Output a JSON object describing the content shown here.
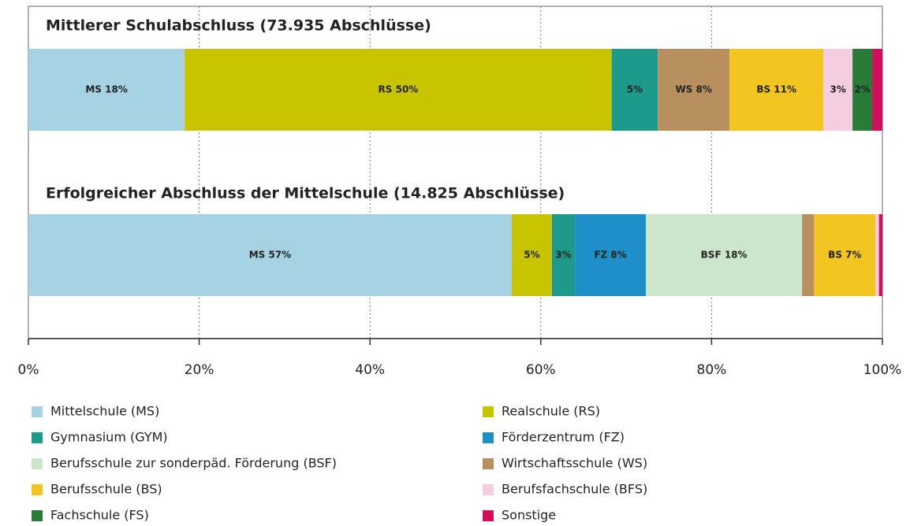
{
  "chart_data": {
    "type": "bar",
    "orientation": "horizontal",
    "stacked": true,
    "categories": [
      "Mittlerer Schulabschluss  (73.935 Abschlüsse)",
      "Erfolgreicher Abschluss der Mittelschule (14.825 Abschlüsse)"
    ],
    "xlim": [
      0,
      100
    ],
    "xticks": [
      {
        "value": 0,
        "label": "0%"
      },
      {
        "value": 20,
        "label": "20%"
      },
      {
        "value": 40,
        "label": "40%"
      },
      {
        "value": 60,
        "label": "60%"
      },
      {
        "value": 80,
        "label": "80%"
      },
      {
        "value": 100,
        "label": "100%"
      }
    ],
    "grid": true,
    "series": [
      {
        "name": "Mittelschule (MS)",
        "color": "#a6d3e3",
        "values": [
          18.3,
          56.6
        ],
        "value_labels": [
          "MS 18%",
          "MS 57%"
        ]
      },
      {
        "name": "Realschule (RS)",
        "color": "#c8c400",
        "values": [
          50.0,
          4.7
        ],
        "value_labels": [
          "RS 50%",
          "5%"
        ]
      },
      {
        "name": "Gymnasium (GYM)",
        "color": "#1e9a8a",
        "values": [
          5.4,
          2.7
        ],
        "value_labels": [
          "5%",
          "3%"
        ]
      },
      {
        "name": "Förderzentrum (FZ)",
        "color": "#1e8fc8",
        "values": [
          null,
          8.3
        ],
        "value_labels": [
          null,
          "FZ 8%"
        ]
      },
      {
        "name": "Berufsschule zur sonderpäd. Förderung (BSF)",
        "color": "#cce6cc",
        "values": [
          null,
          18.3
        ],
        "value_labels": [
          null,
          "BSF 18%"
        ]
      },
      {
        "name": "Wirtschaftsschule (WS)",
        "color": "#b89060",
        "values": [
          8.4,
          1.4
        ],
        "value_labels": [
          "WS 8%",
          null
        ]
      },
      {
        "name": "Berufsschule (BS)",
        "color": "#f2c520",
        "values": [
          11.0,
          7.2
        ],
        "value_labels": [
          "BS 11%",
          "BS 7%"
        ]
      },
      {
        "name": "Berufsfachschule (BFS)",
        "color": "#f5cde0",
        "values": [
          3.4,
          0.4
        ],
        "value_labels": [
          "3%",
          null
        ]
      },
      {
        "name": "Fachschule (FS)",
        "color": "#2a7a38",
        "values": [
          2.3,
          null
        ],
        "value_labels": [
          "2%",
          null
        ]
      },
      {
        "name": "Sonstige",
        "color": "#d0105a",
        "values": [
          1.2,
          0.4
        ],
        "value_labels": [
          null,
          null
        ]
      }
    ]
  }
}
